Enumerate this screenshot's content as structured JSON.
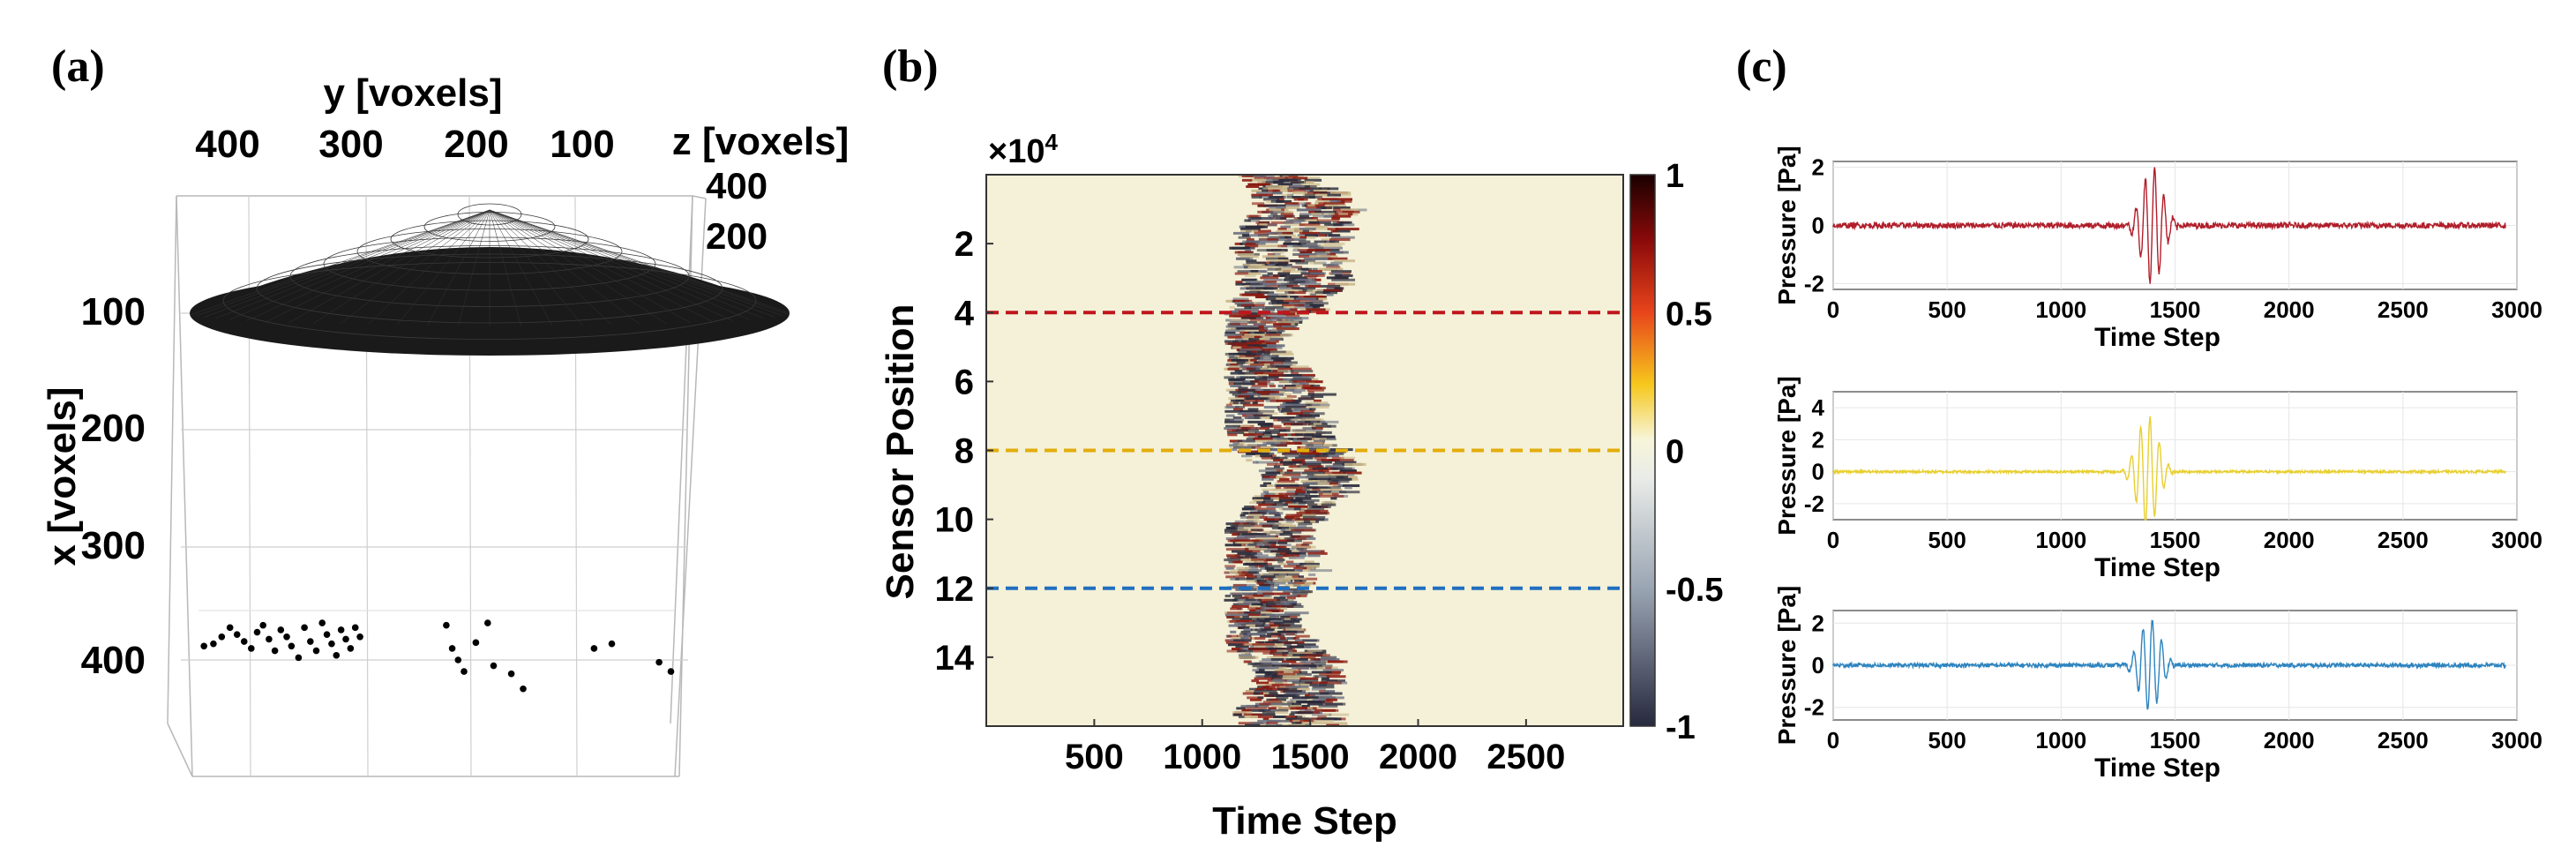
{
  "panel_labels": [
    "(a)",
    "(b)",
    "(c)"
  ],
  "chart_data": [
    {
      "type": "scatter",
      "panel": "(a)",
      "xlabel": "y [voxels]",
      "ylabel": "x [voxels]",
      "zlabel": "z [voxels]",
      "y_ticks": [
        "400",
        "300",
        "200",
        "100"
      ],
      "x_ticks": [
        "100",
        "200",
        "300",
        "400"
      ],
      "z_ticks": [
        "400",
        "200"
      ],
      "grid": true,
      "transducer_color": "#111111",
      "point_color": "#000000",
      "points": [
        {
          "y": 420,
          "x": 388
        },
        {
          "y": 412,
          "x": 386
        },
        {
          "y": 405,
          "x": 380
        },
        {
          "y": 398,
          "x": 372
        },
        {
          "y": 392,
          "x": 378
        },
        {
          "y": 386,
          "x": 384
        },
        {
          "y": 380,
          "x": 390
        },
        {
          "y": 375,
          "x": 376
        },
        {
          "y": 370,
          "x": 370
        },
        {
          "y": 365,
          "x": 382
        },
        {
          "y": 360,
          "x": 392
        },
        {
          "y": 355,
          "x": 374
        },
        {
          "y": 350,
          "x": 380
        },
        {
          "y": 346,
          "x": 388
        },
        {
          "y": 340,
          "x": 398
        },
        {
          "y": 335,
          "x": 372
        },
        {
          "y": 330,
          "x": 384
        },
        {
          "y": 325,
          "x": 392
        },
        {
          "y": 320,
          "x": 368
        },
        {
          "y": 316,
          "x": 378
        },
        {
          "y": 312,
          "x": 386
        },
        {
          "y": 308,
          "x": 396
        },
        {
          "y": 304,
          "x": 374
        },
        {
          "y": 300,
          "x": 382
        },
        {
          "y": 296,
          "x": 390
        },
        {
          "y": 292,
          "x": 372
        },
        {
          "y": 288,
          "x": 380
        },
        {
          "y": 215,
          "x": 370
        },
        {
          "y": 210,
          "x": 390
        },
        {
          "y": 205,
          "x": 400
        },
        {
          "y": 200,
          "x": 410
        },
        {
          "y": 190,
          "x": 385
        },
        {
          "y": 180,
          "x": 368
        },
        {
          "y": 175,
          "x": 405
        },
        {
          "y": 160,
          "x": 412
        },
        {
          "y": 150,
          "x": 425
        },
        {
          "y": 90,
          "x": 390
        },
        {
          "y": 75,
          "x": 386
        },
        {
          "y": 35,
          "x": 402
        },
        {
          "y": 25,
          "x": 410
        }
      ]
    },
    {
      "type": "heatmap",
      "panel": "(b)",
      "xlabel": "Time Step",
      "ylabel": "Sensor Position",
      "y_exponent": "×10",
      "y_exponent_power": "4",
      "x_ticks": [
        500,
        1000,
        1500,
        2000,
        2500
      ],
      "y_ticks": [
        2,
        4,
        6,
        8,
        10,
        12,
        14
      ],
      "xlim": [
        0,
        2950
      ],
      "ylim": [
        0,
        16
      ],
      "colorbar_ticks": [
        "1",
        "0.5",
        "0",
        "-0.5",
        "-1"
      ],
      "colorbar_range": [
        -1,
        1
      ],
      "signal_window": [
        1100,
        1800
      ],
      "marked_rows": [
        {
          "y": 4,
          "color": "#c0161c"
        },
        {
          "y": 8,
          "color": "#e3ad0b"
        },
        {
          "y": 12,
          "color": "#1f6fc0"
        }
      ],
      "background_color": "#f4f1d8"
    },
    {
      "type": "line",
      "panel": "(c)",
      "xlabel": "Time Step",
      "ylabel": "Pressure [Pa]",
      "x_ticks": [
        0,
        500,
        1000,
        1500,
        2000,
        2500,
        3000
      ],
      "xlim": [
        0,
        3000
      ],
      "series": [
        {
          "color": "#b01e2a",
          "ylim": [
            -2.2,
            2.2
          ],
          "y_ticks": [
            "2",
            "0",
            "-2"
          ],
          "burst_center": 1400,
          "burst_amp": 2.0,
          "noise": 0.1
        },
        {
          "color": "#e8cf2f",
          "ylim": [
            -3,
            5
          ],
          "y_ticks": [
            "4",
            "2",
            "0",
            "-2"
          ],
          "burst_center": 1380,
          "burst_amp": 3.5,
          "noise": 0.08
        },
        {
          "color": "#2d84bf",
          "ylim": [
            -2.6,
            2.6
          ],
          "y_ticks": [
            "2",
            "0",
            "-2"
          ],
          "burst_center": 1390,
          "burst_amp": 2.2,
          "noise": 0.1
        }
      ]
    }
  ]
}
